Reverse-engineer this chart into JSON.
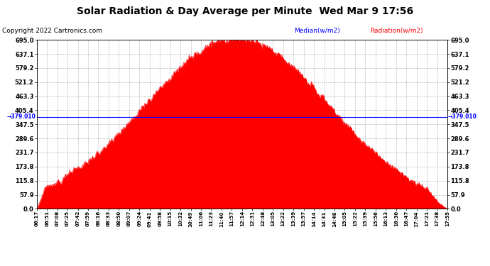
{
  "title": "Solar Radiation & Day Average per Minute  Wed Mar 9 17:56",
  "copyright": "Copyright 2022 Cartronics.com",
  "median_label": "Median(w/m2)",
  "radiation_label": "Radiation(w/m2)",
  "median_value": 379.01,
  "ymin": 0.0,
  "ymax": 695.0,
  "yticks": [
    0.0,
    57.9,
    115.8,
    173.8,
    231.7,
    289.6,
    347.5,
    405.4,
    463.3,
    521.2,
    579.2,
    637.1,
    695.0
  ],
  "ytick_labels": [
    "0.0",
    "57.9",
    "115.8",
    "173.8",
    "231.7",
    "289.6",
    "347.5",
    "405.4",
    "463.3",
    "521.2",
    "579.2",
    "637.1",
    "695.0"
  ],
  "background_color": "#ffffff",
  "plot_bg_color": "#ffffff",
  "grid_color": "#aaaaaa",
  "fill_color": "#ff0000",
  "median_line_color": "#0000ff",
  "title_color": "#000000",
  "title_fontsize": 10,
  "copyright_color": "#000000",
  "copyright_fontsize": 6.5,
  "median_label_color": "#0000ff",
  "radiation_label_color": "#ff0000",
  "xtick_labels": [
    "06:17",
    "06:51",
    "07:08",
    "07:25",
    "07:42",
    "07:59",
    "08:16",
    "08:33",
    "08:50",
    "09:07",
    "09:24",
    "09:41",
    "09:58",
    "10:15",
    "10:32",
    "10:49",
    "11:06",
    "11:23",
    "11:40",
    "11:57",
    "12:14",
    "12:31",
    "12:48",
    "13:05",
    "13:22",
    "13:39",
    "13:57",
    "14:14",
    "14:31",
    "14:48",
    "15:05",
    "15:22",
    "15:39",
    "15:56",
    "16:13",
    "16:30",
    "16:47",
    "17:04",
    "17:21",
    "17:38",
    "17:55"
  ]
}
